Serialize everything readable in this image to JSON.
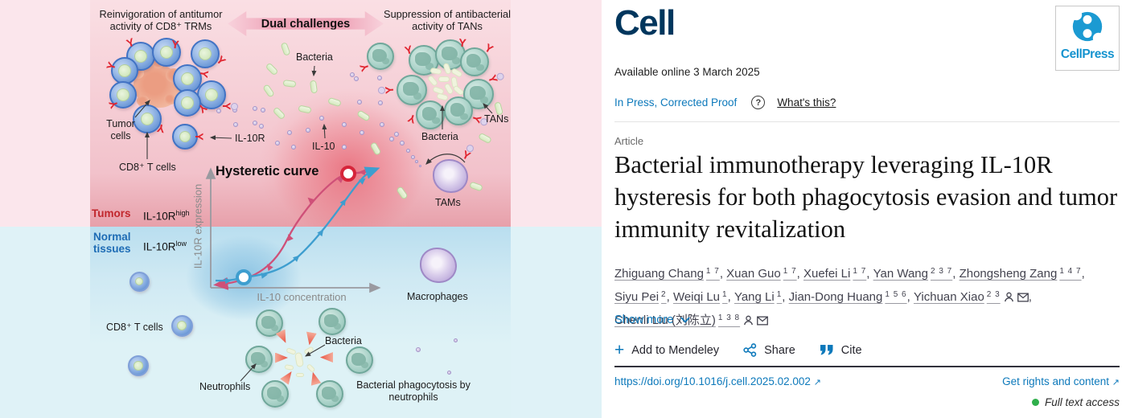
{
  "colors": {
    "link_blue": "#0d79bb",
    "cell_logo_navy": "#00365d",
    "cellpress_blue": "#1593cf",
    "tumors_red": "#c1272d",
    "normal_blue": "#1e6cb5",
    "access_green": "#2faf4b",
    "curve_pink": "#cf5078",
    "curve_blue": "#3e9ecf"
  },
  "figure": {
    "caption_left": "Reinvigoration of antitumor activity of CD8⁺ TRMs",
    "banner": "Dual challenges",
    "caption_right": "Suppression of antibacterial activity of TANs",
    "labels": {
      "bacteria_top": "Bacteria",
      "tumor_cells": "Tumor cells",
      "cd8_top": "CD8⁺ T cells",
      "il10r": "IL-10R",
      "il10": "IL-10",
      "tans": "TANs",
      "bacteria_right": "Bacteria",
      "tams": "TAMs",
      "hysteretic_curve": "Hysteretic curve",
      "y_axis": "IL-10R expression",
      "x_axis": "IL-10 concentration",
      "tumors": "Tumors",
      "il10r_level_base": "IL-10R",
      "il10r_high_sup": "high",
      "normal_tissues": "Normal tissues",
      "il10r_low_sup": "low",
      "macrophages": "Macrophages",
      "cd8_bottom": "CD8⁺ T cells",
      "neutrophils": "Neutrophils",
      "bacteria_bottom": "Bacteria",
      "phagocytosis": "Bacterial phagocytosis by neutrophils"
    }
  },
  "article": {
    "journal_logo": "Cell",
    "publisher": "CellPress",
    "available_online": "Available online 3 March 2025",
    "in_press": "In Press, Corrected Proof",
    "help_glyph": "?",
    "whats_this": "What's this?",
    "type_label": "Article",
    "title": "Bacterial immunotherapy leveraging IL-10R hysteresis for both phagocytosis evasion and tumor immunity revitalization",
    "authors": [
      {
        "name": "Zhiguang Chang",
        "sups": "1 7",
        "has_icons": false
      },
      {
        "name": "Xuan Guo",
        "sups": "1 7",
        "has_icons": false
      },
      {
        "name": "Xuefei Li",
        "sups": "1 7",
        "has_icons": false
      },
      {
        "name": "Yan Wang",
        "sups": "2 3 7",
        "has_icons": false
      },
      {
        "name": "Zhongsheng Zang",
        "sups": "1 4 7",
        "has_icons": false
      },
      {
        "name": "Siyu Pei",
        "sups": "2",
        "has_icons": false
      },
      {
        "name": "Weiqi Lu",
        "sups": "1",
        "has_icons": false
      },
      {
        "name": "Yang Li",
        "sups": "1",
        "has_icons": false
      },
      {
        "name": "Jian-Dong Huang",
        "sups": "1 5 6",
        "has_icons": false
      },
      {
        "name": "Yichuan Xiao",
        "sups": "2 3",
        "has_icons": true
      },
      {
        "name": "Chenli Liu (刘陈立)",
        "sups": "1 3 8",
        "has_icons": true
      }
    ],
    "show_more": "Show more",
    "actions": {
      "plus_glyph": "+",
      "mendeley": "Add to Mendeley",
      "share": "Share",
      "cite": "Cite"
    },
    "doi": "https://doi.org/10.1016/j.cell.2025.02.002",
    "external_arrow": "↗",
    "rights": "Get rights and content",
    "access": "Full text access",
    "icons": {
      "person": "person-icon",
      "envelope": "envelope-icon",
      "share": "share-icon",
      "cite": "cite-icon",
      "plus": "plus-icon",
      "chevron": "chevron-down-icon",
      "help": "question-mark-icon",
      "external": "external-link-icon",
      "access_dot": "green-dot-icon"
    }
  }
}
